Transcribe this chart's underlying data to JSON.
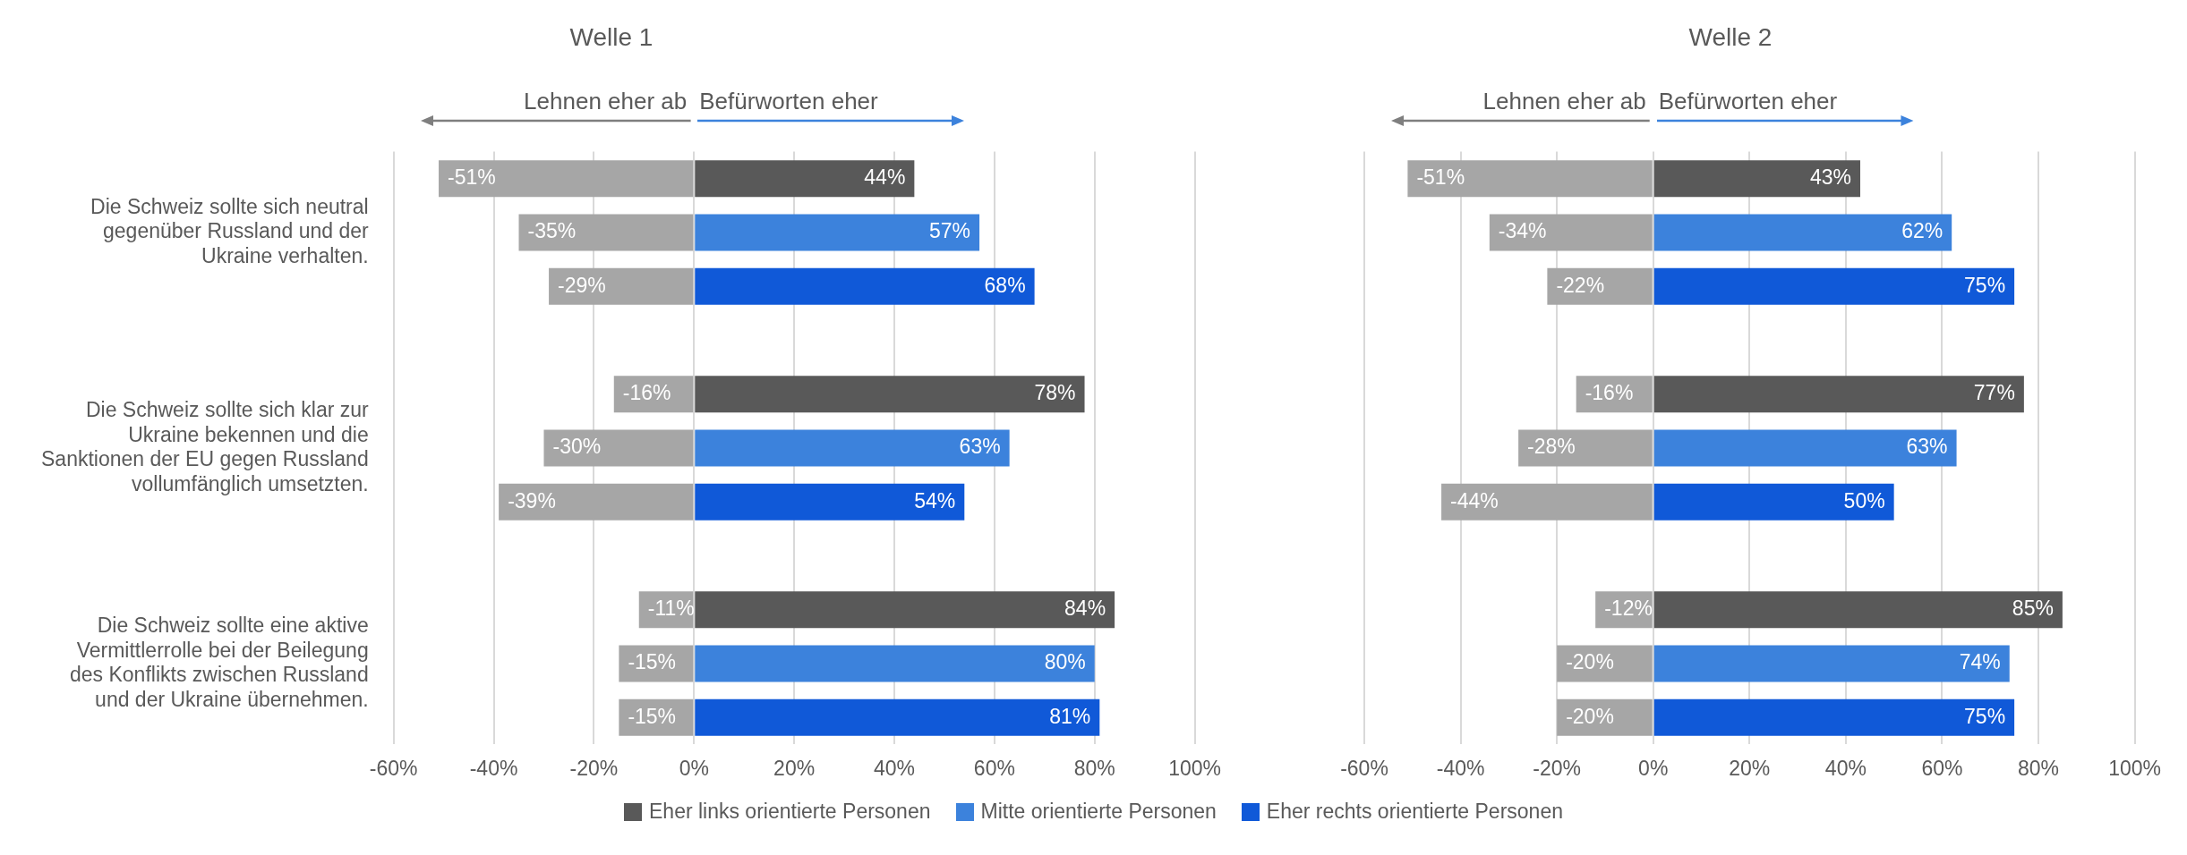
{
  "chart_data": [
    {
      "type": "bar",
      "title": "Welle 1",
      "orientation": "horizontal",
      "stacked": true,
      "legend": "bottom",
      "grid": "x",
      "data_labels": true,
      "categories": [
        null,
        "Die Schweiz sollte sich neutral gegenüber Russland und der Ukraine verhalten.",
        null,
        null,
        null,
        "Die Schweiz sollte sich klar zur Ukraine bekennen und die Sanktionen der EU gegen Russland vollumfänglich umsetzten.",
        null,
        null,
        null,
        "Die Schweiz sollte eine aktive Vermittlerrolle bei der Beilegung des Konflikts zwischen Russland und der Ukraine übernehmen.",
        null
      ],
      "series": [
        {
          "color": "#a6a6a6",
          "values": [
            -51,
            -35,
            -29,
            null,
            -16,
            -30,
            -39,
            null,
            -11,
            -15,
            -15
          ],
          "value_labels": [
            "-51%",
            "-35%",
            "-29%",
            null,
            "-16%",
            "-30%",
            "-39%",
            null,
            "-11%",
            "-15%",
            "-15%"
          ]
        },
        {
          "name": "Eher links orientierte Personen",
          "color": "#595959",
          "values": [
            44,
            null,
            null,
            null,
            78,
            null,
            null,
            null,
            84,
            null,
            null
          ],
          "value_labels": [
            "44%",
            null,
            null,
            null,
            "78%",
            null,
            null,
            null,
            "84%",
            null,
            null
          ]
        },
        {
          "name": "Mitte orientierte Personen",
          "color": "#3c82dc",
          "values": [
            null,
            57,
            null,
            null,
            null,
            63,
            null,
            null,
            null,
            80,
            null
          ],
          "value_labels": [
            null,
            "57%",
            null,
            null,
            null,
            "63%",
            null,
            null,
            null,
            "80%",
            null
          ]
        },
        {
          "name": "Eher rechts orientierte Personen",
          "color": "#1059d8",
          "values": [
            null,
            null,
            68,
            null,
            null,
            null,
            54,
            null,
            null,
            null,
            81
          ],
          "value_labels": [
            null,
            null,
            "68%",
            null,
            null,
            null,
            "54%",
            null,
            null,
            null,
            "81%"
          ]
        }
      ],
      "xlim": [
        -60,
        100
      ],
      "xticks": [
        {
          "value": -60,
          "label": "-60%"
        },
        {
          "value": -40,
          "label": "-40%"
        },
        {
          "value": -20,
          "label": "-20%"
        },
        {
          "value": 0,
          "label": "0%"
        },
        {
          "value": 20,
          "label": "20%"
        },
        {
          "value": 40,
          "label": "40%"
        },
        {
          "value": 60,
          "label": "60%"
        },
        {
          "value": 80,
          "label": "80%"
        },
        {
          "value": 100,
          "label": "100%"
        }
      ],
      "annotations": [
        "Lehnen eher ab",
        "Befürworten eher"
      ]
    },
    {
      "type": "bar",
      "title": "Welle 2",
      "orientation": "horizontal",
      "stacked": true,
      "legend": "bottom",
      "grid": "x",
      "data_labels": true,
      "categories": [
        null,
        null,
        null,
        null,
        null,
        null,
        null,
        null,
        null,
        null,
        null
      ],
      "series": [
        {
          "color": "#a6a6a6",
          "values": [
            -51,
            -34,
            -22,
            null,
            -16,
            -28,
            -44,
            null,
            -12,
            -20,
            -20
          ],
          "value_labels": [
            "-51%",
            "-34%",
            "-22%",
            null,
            "-16%",
            "-28%",
            "-44%",
            null,
            "-12%",
            "-20%",
            "-20%"
          ]
        },
        {
          "name": "Eher links orientierte Personen",
          "color": "#595959",
          "values": [
            43,
            null,
            null,
            null,
            77,
            null,
            null,
            null,
            85,
            null,
            null
          ],
          "value_labels": [
            "43%",
            null,
            null,
            null,
            "77%",
            null,
            null,
            null,
            "85%",
            null,
            null
          ]
        },
        {
          "name": "Mitte orientierte Personen",
          "color": "#3c82dc",
          "values": [
            null,
            62,
            null,
            null,
            null,
            63,
            null,
            null,
            null,
            74,
            null
          ],
          "value_labels": [
            null,
            "62%",
            null,
            null,
            null,
            "63%",
            null,
            null,
            null,
            "74%",
            null
          ]
        },
        {
          "name": "Eher rechts orientierte Personen",
          "color": "#1059d8",
          "values": [
            null,
            null,
            75,
            null,
            null,
            null,
            50,
            null,
            null,
            null,
            75
          ],
          "value_labels": [
            null,
            null,
            "75%",
            null,
            null,
            null,
            "50%",
            null,
            null,
            null,
            "75%"
          ]
        }
      ],
      "xlim": [
        -60,
        100
      ],
      "xticks": [
        {
          "value": -60,
          "label": "-60%"
        },
        {
          "value": -40,
          "label": "-40%"
        },
        {
          "value": -20,
          "label": "-20%"
        },
        {
          "value": 0,
          "label": "0%"
        },
        {
          "value": 20,
          "label": "20%"
        },
        {
          "value": 40,
          "label": "40%"
        },
        {
          "value": 60,
          "label": "60%"
        },
        {
          "value": 80,
          "label": "80%"
        },
        {
          "value": 100,
          "label": "100%"
        }
      ],
      "annotations": [
        "Lehnen eher ab",
        "Befürworten eher"
      ]
    }
  ]
}
